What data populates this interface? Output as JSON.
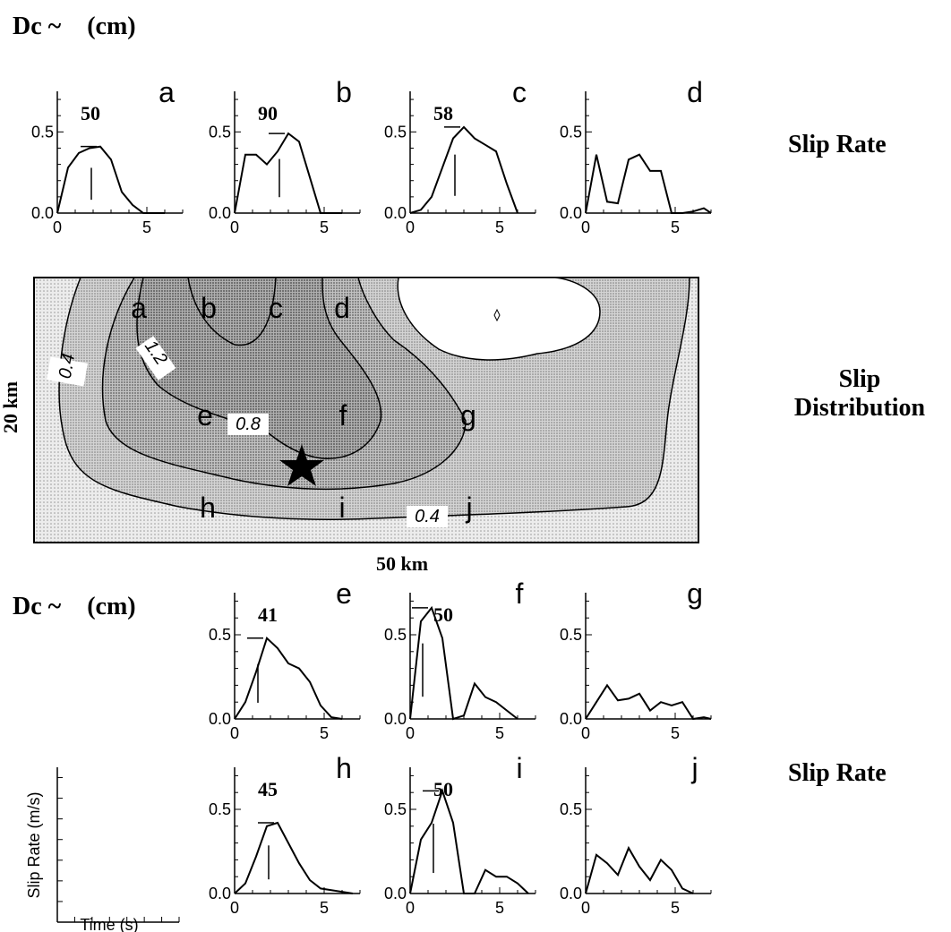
{
  "header": {
    "dc_label_top": "Dc ~",
    "dc_unit_top": "(cm)",
    "dc_label_bottom": "Dc ~",
    "dc_unit_bottom": "(cm)"
  },
  "side_labels": {
    "slip_rate_top": "Slip Rate",
    "slip_distribution_line1": "Slip",
    "slip_distribution_line2": "Distribution",
    "slip_rate_bottom": "Slip Rate"
  },
  "map": {
    "height_label": "20 km",
    "width_label": "50 km",
    "contour_labels": [
      "0.4",
      "1.2",
      "0.8",
      "0.4"
    ],
    "point_labels": [
      "a",
      "b",
      "c",
      "d",
      "e",
      "f",
      "g",
      "h",
      "i",
      "j"
    ],
    "hypocenter": "star"
  },
  "chart_data": [
    {
      "type": "line",
      "panel": "a",
      "dc": "50",
      "x": [
        0,
        0.6,
        1.2,
        1.8,
        2.4,
        3.0,
        3.6,
        4.2,
        4.8,
        5.4,
        6.0
      ],
      "values": [
        0.0,
        0.28,
        0.37,
        0.4,
        0.41,
        0.33,
        0.13,
        0.05,
        0.0,
        0.0,
        0.0
      ],
      "xlim": [
        0,
        7
      ],
      "ylim": [
        0,
        0.75
      ],
      "xticks": [
        "0",
        "5"
      ],
      "yticks": [
        "0.0",
        "0.5"
      ]
    },
    {
      "type": "line",
      "panel": "b",
      "dc": "90",
      "x": [
        0,
        0.6,
        1.2,
        1.8,
        2.4,
        3.0,
        3.6,
        4.2,
        4.8,
        5.4,
        6.0
      ],
      "values": [
        0.0,
        0.36,
        0.36,
        0.3,
        0.38,
        0.49,
        0.44,
        0.22,
        0.0,
        0.0,
        0.0
      ],
      "xlim": [
        0,
        7
      ],
      "ylim": [
        0,
        0.75
      ],
      "xticks": [
        "0",
        "5"
      ],
      "yticks": [
        "0.0",
        "0.5"
      ]
    },
    {
      "type": "line",
      "panel": "c",
      "dc": "58",
      "x": [
        0,
        0.6,
        1.2,
        1.8,
        2.4,
        3.0,
        3.6,
        4.2,
        4.8,
        5.4,
        6.0
      ],
      "values": [
        0.0,
        0.02,
        0.1,
        0.28,
        0.46,
        0.53,
        0.46,
        0.42,
        0.38,
        0.18,
        0.0
      ],
      "xlim": [
        0,
        7
      ],
      "ylim": [
        0,
        0.75
      ],
      "xticks": [
        "0",
        "5"
      ],
      "yticks": [
        "0.0",
        "0.5"
      ]
    },
    {
      "type": "line",
      "panel": "d",
      "dc": "",
      "x": [
        0,
        0.6,
        1.2,
        1.8,
        2.4,
        3.0,
        3.6,
        4.2,
        4.8,
        5.4,
        6.0,
        6.6,
        7.0
      ],
      "values": [
        0.0,
        0.36,
        0.07,
        0.06,
        0.33,
        0.36,
        0.26,
        0.26,
        0.0,
        0.0,
        0.01,
        0.03,
        0.0
      ],
      "xlim": [
        0,
        7
      ],
      "ylim": [
        0,
        0.75
      ],
      "xticks": [
        "0",
        "5"
      ],
      "yticks": [
        "0.0",
        "0.5"
      ]
    },
    {
      "type": "line",
      "panel": "e",
      "dc": "41",
      "x": [
        0,
        0.6,
        1.2,
        1.8,
        2.4,
        3.0,
        3.6,
        4.2,
        4.8,
        5.4,
        6.0
      ],
      "values": [
        0.0,
        0.1,
        0.28,
        0.48,
        0.42,
        0.33,
        0.3,
        0.22,
        0.08,
        0.01,
        0.0
      ],
      "xlim": [
        0,
        7
      ],
      "ylim": [
        0,
        0.75
      ],
      "xticks": [
        "0",
        "5"
      ],
      "yticks": [
        "0.0",
        "0.5"
      ]
    },
    {
      "type": "line",
      "panel": "f",
      "dc": "50",
      "x": [
        0,
        0.6,
        1.2,
        1.8,
        2.4,
        3.0,
        3.6,
        4.2,
        4.8,
        5.4,
        6.0
      ],
      "values": [
        0.0,
        0.58,
        0.66,
        0.48,
        0.0,
        0.02,
        0.21,
        0.13,
        0.1,
        0.05,
        0.0
      ],
      "xlim": [
        0,
        7
      ],
      "ylim": [
        0,
        0.75
      ],
      "xticks": [
        "0",
        "5"
      ],
      "yticks": [
        "0.0",
        "0.5"
      ]
    },
    {
      "type": "line",
      "panel": "g",
      "dc": "",
      "x": [
        0,
        0.6,
        1.2,
        1.8,
        2.4,
        3.0,
        3.6,
        4.2,
        4.8,
        5.4,
        6.0,
        6.6,
        7.0
      ],
      "values": [
        0.0,
        0.1,
        0.2,
        0.11,
        0.12,
        0.15,
        0.05,
        0.1,
        0.08,
        0.1,
        0.0,
        0.01,
        0.0
      ],
      "xlim": [
        0,
        7
      ],
      "ylim": [
        0,
        0.75
      ],
      "xticks": [
        "0",
        "5"
      ],
      "yticks": [
        "0.0",
        "0.5"
      ]
    },
    {
      "type": "line",
      "panel": "h",
      "dc": "45",
      "x": [
        0,
        0.6,
        1.2,
        1.8,
        2.4,
        3.0,
        3.6,
        4.2,
        4.8,
        5.4,
        6.0,
        6.6
      ],
      "values": [
        0.0,
        0.06,
        0.22,
        0.4,
        0.42,
        0.3,
        0.18,
        0.08,
        0.03,
        0.02,
        0.01,
        0.0
      ],
      "xlim": [
        0,
        7
      ],
      "ylim": [
        0,
        0.75
      ],
      "xticks": [
        "0",
        "5"
      ],
      "yticks": [
        "0.0",
        "0.5"
      ]
    },
    {
      "type": "line",
      "panel": "i",
      "dc": "50",
      "x": [
        0,
        0.6,
        1.2,
        1.8,
        2.4,
        3.0,
        3.6,
        4.2,
        4.8,
        5.4,
        6.0,
        6.6
      ],
      "values": [
        0.0,
        0.32,
        0.42,
        0.61,
        0.42,
        0.0,
        0.0,
        0.14,
        0.1,
        0.1,
        0.06,
        0.0
      ],
      "xlim": [
        0,
        7
      ],
      "ylim": [
        0,
        0.75
      ],
      "xticks": [
        "0",
        "5"
      ],
      "yticks": [
        "0.0",
        "0.5"
      ]
    },
    {
      "type": "line",
      "panel": "j",
      "dc": "",
      "x": [
        0,
        0.6,
        1.2,
        1.8,
        2.4,
        3.0,
        3.6,
        4.2,
        4.8,
        5.4,
        6.0
      ],
      "values": [
        0.0,
        0.23,
        0.18,
        0.11,
        0.27,
        0.16,
        0.08,
        0.2,
        0.14,
        0.03,
        0.0
      ],
      "xlim": [
        0,
        7
      ],
      "ylim": [
        0,
        0.75
      ],
      "xticks": [
        "0",
        "5"
      ],
      "yticks": [
        "0.0",
        "0.5"
      ]
    }
  ],
  "legend_axes": {
    "ylabel": "Slip Rate (m/s)",
    "xlabel": "Time (s)"
  }
}
